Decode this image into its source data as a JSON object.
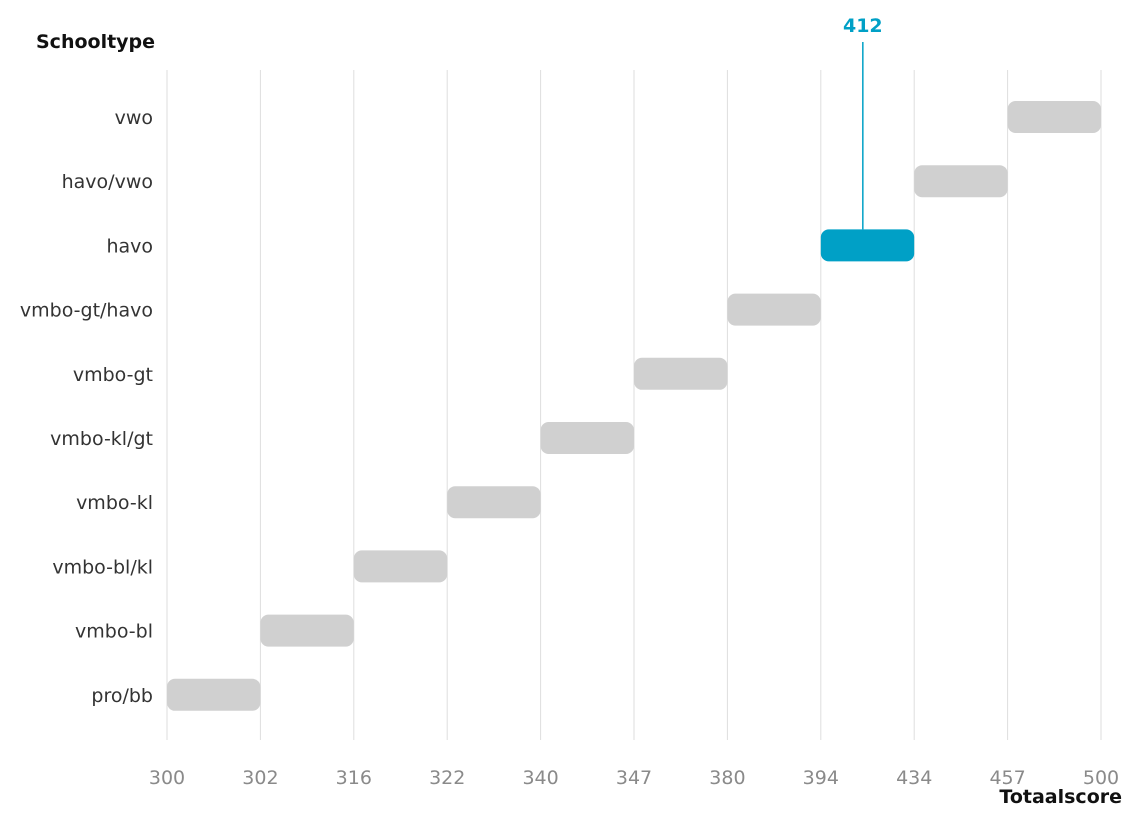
{
  "chart_data": {
    "type": "bar",
    "subtype": "range-steps",
    "ylabel": "Schooltype",
    "xlabel": "Totaalscore",
    "x_ticks": [
      "300",
      "302",
      "316",
      "322",
      "340",
      "347",
      "380",
      "394",
      "434",
      "457",
      "500"
    ],
    "categories": [
      "vwo",
      "havo/vwo",
      "havo",
      "vmbo-gt/havo",
      "vmbo-gt",
      "vmbo-kl/gt",
      "vmbo-kl",
      "vmbo-bl/kl",
      "vmbo-bl",
      "pro/bb"
    ],
    "ranges": [
      [
        "457",
        "500"
      ],
      [
        "434",
        "457"
      ],
      [
        "394",
        "434"
      ],
      [
        "380",
        "394"
      ],
      [
        "347",
        "380"
      ],
      [
        "340",
        "347"
      ],
      [
        "322",
        "340"
      ],
      [
        "316",
        "322"
      ],
      [
        "302",
        "316"
      ],
      [
        "300",
        "302"
      ]
    ],
    "highlight": {
      "category": "havo",
      "label": "412",
      "value": 412,
      "color": "#00A0C6"
    },
    "colors": {
      "bar": "#D0D0D0",
      "highlight": "#00A0C6"
    },
    "grid": true
  }
}
